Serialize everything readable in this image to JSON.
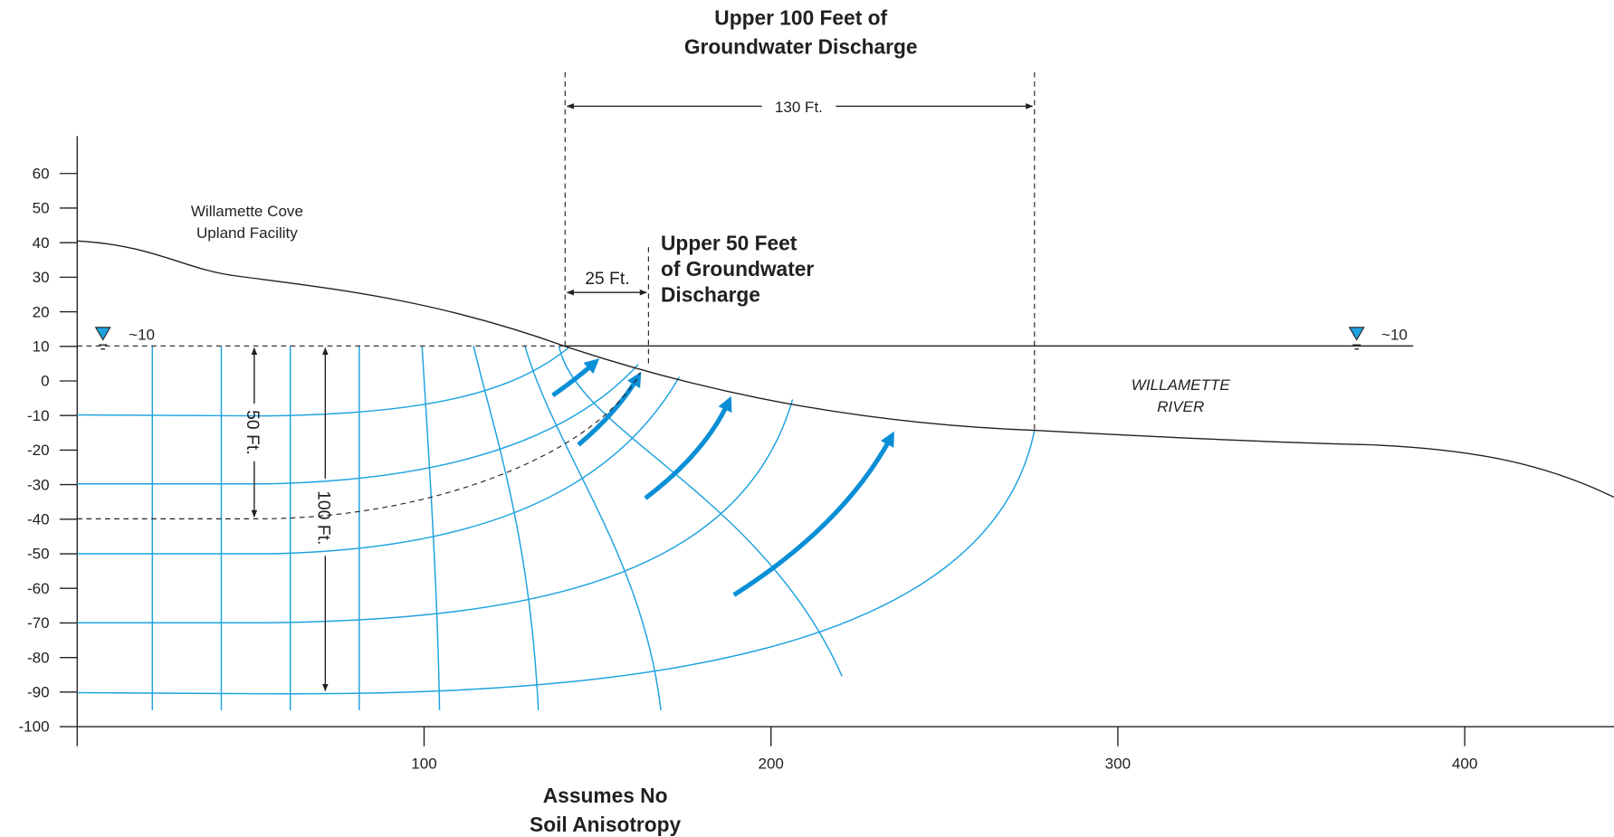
{
  "annotations": {
    "upper_100": {
      "lines": [
        "Upper 100 Feet of",
        "Groundwater Discharge"
      ],
      "width": "130 Ft."
    },
    "upper_50": {
      "lines": [
        "Upper 50 Feet",
        "of Groundwater",
        "Discharge"
      ],
      "width": "25 Ft."
    },
    "facility": [
      "Willamette Cove",
      "Upland Facility"
    ],
    "river": [
      "WILLAMETTE",
      "RIVER"
    ],
    "water_level_left": "~10",
    "water_level_right": "~10",
    "depth_50": "50 Ft.",
    "depth_100": "100 Ft.",
    "caption": [
      "Assumes No",
      "Soil Anisotropy"
    ]
  },
  "axes": {
    "yticks": [
      60,
      50,
      40,
      30,
      20,
      10,
      0,
      -10,
      -20,
      -30,
      -40,
      -50,
      -60,
      -70,
      -80,
      -90,
      -100
    ],
    "xticks": [
      100,
      200,
      300,
      400
    ]
  }
}
